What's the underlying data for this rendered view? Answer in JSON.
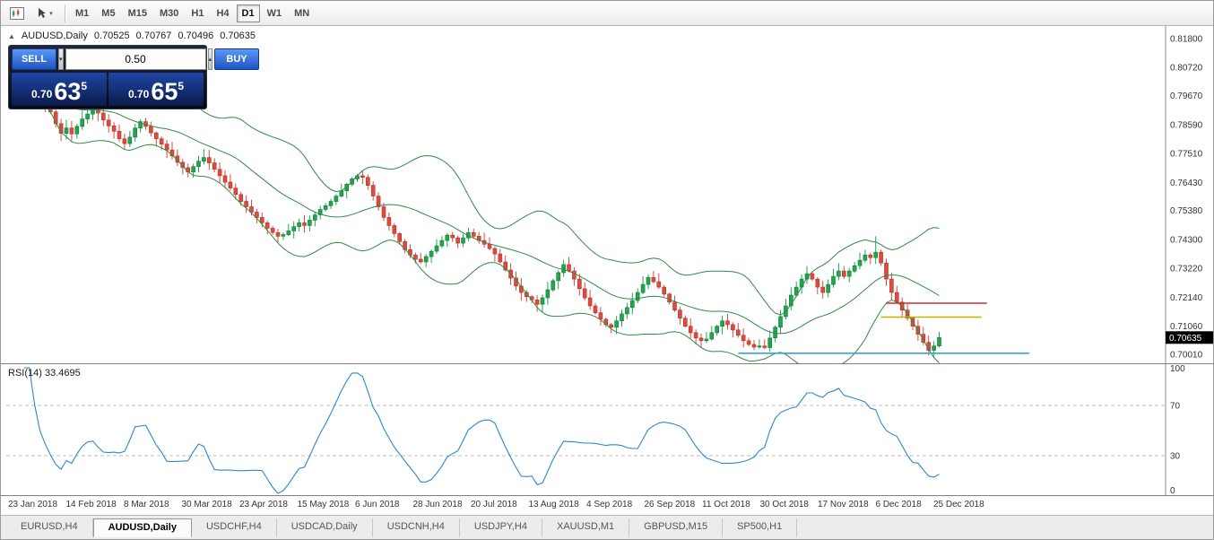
{
  "toolbar": {
    "timeframes": [
      "M1",
      "M5",
      "M15",
      "M30",
      "H1",
      "H4",
      "D1",
      "W1",
      "MN"
    ],
    "active_timeframe": "D1",
    "icons": [
      "chart-window-icon",
      "cursor-tool-icon",
      "dropdown-caret-icon"
    ]
  },
  "chart": {
    "header": {
      "marker": "▲",
      "symbol_period": "AUDUSD,Daily",
      "open": "0.70525",
      "high": "0.70767",
      "low": "0.70496",
      "close": "0.70635"
    },
    "price_axis": [
      "0.81800",
      "0.80720",
      "0.79670",
      "0.78590",
      "0.77510",
      "0.76430",
      "0.75380",
      "0.74300",
      "0.73220",
      "0.72140",
      "0.71060",
      "0.70010"
    ],
    "current_price_tag": "0.70635",
    "time_axis": [
      "23 Jan 2018",
      "14 Feb 2018",
      "8 Mar 2018",
      "30 Mar 2018",
      "23 Apr 2018",
      "15 May 2018",
      "6 Jun 2018",
      "28 Jun 2018",
      "20 Jul 2018",
      "13 Aug 2018",
      "4 Sep 2018",
      "26 Sep 2018",
      "11 Oct 2018",
      "30 Oct 2018",
      "17 Nov 2018",
      "6 Dec 2018",
      "25 Dec 2018"
    ],
    "levels": [
      {
        "name": "resistance-red-line",
        "color": "#cc2f2f",
        "price": 0.7192,
        "from_bar": 165,
        "to_bar": 184
      },
      {
        "name": "support-yellow-line",
        "color": "#b8b800",
        "price": 0.714,
        "from_bar": 164,
        "to_bar": 183
      },
      {
        "name": "support-blue-line",
        "color": "#3aa0dc",
        "price": 0.7005,
        "from_bar": 137,
        "to_bar": 192
      }
    ],
    "colors": {
      "bull": "#21a64f",
      "bull_border": "#0f7c36",
      "bear": "#dd4b3e",
      "bear_border": "#b0352b",
      "bands": "#2e8b46",
      "rsi_line": "#2e86d1"
    }
  },
  "trade_widget": {
    "sell_label": "SELL",
    "buy_label": "BUY",
    "volume": "0.50",
    "spin_down": "▾",
    "spin_up": "▴",
    "sell_price_small": "0.70",
    "sell_price_big": "63",
    "sell_price_sup": "5",
    "buy_price_small": "0.70",
    "buy_price_big": "65",
    "buy_price_sup": "5"
  },
  "rsi": {
    "label": "RSI(14) 33.4695",
    "axis": [
      "100",
      "70",
      "30",
      "0"
    ],
    "level_lines": [
      70,
      30
    ]
  },
  "tabs": [
    "EURUSD,H4",
    "AUDUSD,Daily",
    "USDCHF,H4",
    "USDCAD,Daily",
    "USDCNH,H4",
    "USDJPY,H4",
    "XAUUSD,M1",
    "GBPUSD,M15",
    "SP500,H1"
  ],
  "active_tab": "AUDUSD,Daily",
  "chart_data": {
    "type": "candlestick",
    "symbol": "AUDUSD",
    "period": "Daily",
    "y_range": [
      0.7001,
      0.818
    ],
    "indicators": [
      {
        "name": "Bollinger Bands",
        "period": 20,
        "deviation": 2
      },
      {
        "name": "RSI",
        "period": 14,
        "current_value": 33.4695
      }
    ],
    "closes": [
      0.7958,
      0.7978,
      0.7992,
      0.7999,
      0.7982,
      0.7958,
      0.7936,
      0.7906,
      0.7862,
      0.7826,
      0.7846,
      0.7824,
      0.7852,
      0.788,
      0.7898,
      0.7922,
      0.7902,
      0.7876,
      0.7854,
      0.7834,
      0.7806,
      0.7788,
      0.7812,
      0.7846,
      0.787,
      0.7852,
      0.7828,
      0.7806,
      0.7786,
      0.7764,
      0.7742,
      0.7718,
      0.7698,
      0.7682,
      0.7702,
      0.7722,
      0.7736,
      0.7716,
      0.7692,
      0.7668,
      0.7644,
      0.7622,
      0.7598,
      0.7572,
      0.7552,
      0.7532,
      0.7512,
      0.7492,
      0.7472,
      0.7456,
      0.7442,
      0.7448,
      0.7462,
      0.7478,
      0.7492,
      0.7482,
      0.7502,
      0.7522,
      0.7542,
      0.7556,
      0.7572,
      0.7592,
      0.7612,
      0.7636,
      0.7656,
      0.7668,
      0.7662,
      0.7632,
      0.7592,
      0.7552,
      0.7512,
      0.7482,
      0.7452,
      0.7422,
      0.7392,
      0.7372,
      0.7356,
      0.7346,
      0.7366,
      0.7386,
      0.7406,
      0.7426,
      0.7446,
      0.7436,
      0.7416,
      0.7436,
      0.7456,
      0.7442,
      0.7426,
      0.7412,
      0.7396,
      0.7376,
      0.7346,
      0.7316,
      0.7286,
      0.7256,
      0.7232,
      0.7216,
      0.7204,
      0.7188,
      0.7212,
      0.7242,
      0.7276,
      0.7306,
      0.7336,
      0.7312,
      0.7282,
      0.7246,
      0.7212,
      0.7182,
      0.7156,
      0.7132,
      0.7112,
      0.7102,
      0.7126,
      0.7152,
      0.7176,
      0.7202,
      0.7232,
      0.7262,
      0.7288,
      0.7272,
      0.7252,
      0.7226,
      0.7196,
      0.7166,
      0.7136,
      0.7106,
      0.7082,
      0.7062,
      0.7052,
      0.7058,
      0.7082,
      0.7106,
      0.7126,
      0.7112,
      0.7092,
      0.7072,
      0.7052,
      0.7038,
      0.7028,
      0.7032,
      0.7026,
      0.7062,
      0.7102,
      0.7142,
      0.7182,
      0.7222,
      0.7252,
      0.7282,
      0.7302,
      0.7282,
      0.7252,
      0.7232,
      0.7262,
      0.7292,
      0.7312,
      0.7292,
      0.7312,
      0.7332,
      0.7352,
      0.7372,
      0.7362,
      0.7382,
      0.7342,
      0.7282,
      0.7232,
      0.7196,
      0.7166,
      0.7136,
      0.7106,
      0.7076,
      0.7046,
      0.7016,
      0.7032,
      0.70635
    ],
    "spikes": [
      {
        "index": 163,
        "high": 0.7442
      },
      {
        "index": 15,
        "high": 0.7952
      }
    ]
  }
}
